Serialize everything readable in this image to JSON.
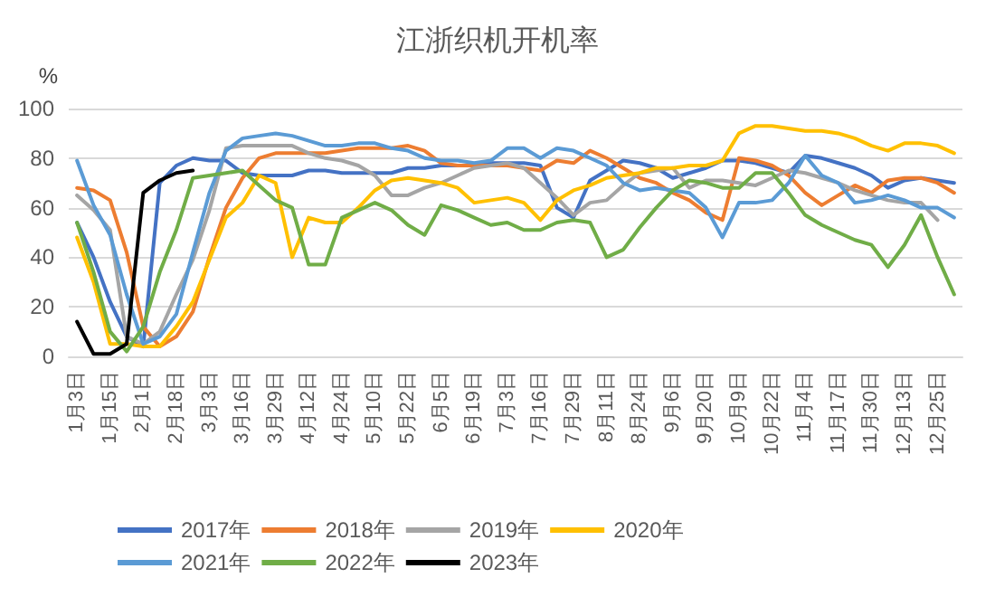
{
  "chart_data": {
    "type": "line",
    "title": "江浙织机开机率",
    "ylabel": "%",
    "categories": [
      "1月3日",
      null,
      "1月15日",
      null,
      "2月1日",
      null,
      "2月18日",
      null,
      "3月3日",
      null,
      "3月16日",
      null,
      "3月29日",
      null,
      "4月12日",
      null,
      "4月24日",
      null,
      "5月10日",
      null,
      "5月22日",
      null,
      "6月5日",
      null,
      "6月19日",
      null,
      "7月3日",
      null,
      "7月16日",
      null,
      "7月29日",
      null,
      "8月11日",
      null,
      "8月24日",
      null,
      "9月6日",
      null,
      "9月20日",
      null,
      "10月9日",
      null,
      "10月22日",
      null,
      "11月4日",
      null,
      "11月17日",
      null,
      "11月30日",
      null,
      "12月13日",
      null,
      "12月25日",
      null
    ],
    "series": [
      {
        "name": "2017年",
        "color": "#4472c4",
        "values": [
          54,
          40,
          22,
          8,
          4,
          70,
          77,
          80,
          79,
          79,
          74,
          73,
          73,
          73,
          75,
          75,
          74,
          74,
          74,
          74,
          76,
          76,
          77,
          77,
          77,
          78,
          78,
          78,
          77,
          60,
          56,
          71,
          75,
          79,
          78,
          76,
          72,
          74,
          76,
          79,
          79,
          78,
          76,
          74,
          81,
          80,
          78,
          76,
          73,
          68,
          71,
          72,
          71,
          70
        ]
      },
      {
        "name": "2018年",
        "color": "#ed7d31",
        "values": [
          68,
          67,
          63,
          42,
          12,
          4,
          8,
          18,
          40,
          60,
          72,
          80,
          82,
          82,
          82,
          82,
          83,
          84,
          84,
          84,
          85,
          83,
          78,
          77,
          77,
          77,
          77,
          76,
          75,
          79,
          78,
          83,
          80,
          76,
          72,
          70,
          66,
          63,
          58,
          55,
          80,
          79,
          77,
          73,
          66,
          61,
          65,
          69,
          66,
          71,
          72,
          72,
          70,
          66
        ]
      },
      {
        "name": "2019年",
        "color": "#a5a5a5",
        "values": [
          65,
          59,
          51,
          8,
          5,
          10,
          25,
          39,
          59,
          84,
          85,
          85,
          85,
          85,
          82,
          80,
          79,
          77,
          73,
          65,
          65,
          68,
          70,
          73,
          76,
          77,
          78,
          76,
          70,
          64,
          57,
          62,
          63,
          69,
          74,
          75,
          76,
          68,
          71,
          71,
          70,
          69,
          72,
          75,
          74,
          72,
          70,
          67,
          65,
          63,
          62,
          62,
          55,
          null
        ]
      },
      {
        "name": "2020年",
        "color": "#ffc000",
        "values": [
          48,
          30,
          5,
          5,
          4,
          4,
          12,
          22,
          39,
          56,
          62,
          73,
          70,
          40,
          56,
          54,
          54,
          60,
          67,
          71,
          72,
          71,
          70,
          68,
          62,
          63,
          64,
          62,
          55,
          63,
          67,
          69,
          72,
          73,
          74,
          76,
          76,
          77,
          77,
          79,
          90,
          93,
          93,
          92,
          91,
          91,
          90,
          88,
          85,
          83,
          86,
          86,
          85,
          82
        ]
      },
      {
        "name": "2021年",
        "color": "#5b9bd5",
        "values": [
          79,
          61,
          49,
          25,
          5,
          8,
          17,
          42,
          66,
          83,
          88,
          89,
          90,
          89,
          87,
          85,
          85,
          86,
          86,
          84,
          83,
          80,
          79,
          79,
          78,
          79,
          84,
          84,
          80,
          84,
          83,
          80,
          77,
          70,
          67,
          68,
          67,
          66,
          60,
          48,
          62,
          62,
          63,
          70,
          81,
          73,
          70,
          62,
          63,
          65,
          63,
          60,
          60,
          56
        ]
      },
      {
        "name": "2022年",
        "color": "#70ad47",
        "values": [
          54,
          34,
          10,
          2,
          12,
          34,
          51,
          72,
          73,
          74,
          75,
          69,
          63,
          60,
          37,
          37,
          56,
          59,
          62,
          59,
          53,
          49,
          61,
          59,
          56,
          53,
          54,
          51,
          51,
          54,
          55,
          54,
          40,
          43,
          52,
          60,
          67,
          71,
          70,
          68,
          68,
          74,
          74,
          66,
          57,
          53,
          50,
          47,
          45,
          36,
          45,
          57,
          40,
          25
        ]
      },
      {
        "name": "2023年",
        "color": "#000000",
        "values": [
          14,
          1,
          1,
          5,
          66,
          71,
          74,
          75,
          null,
          null,
          null,
          null,
          null,
          null,
          null,
          null,
          null,
          null,
          null,
          null,
          null,
          null,
          null,
          null,
          null,
          null,
          null,
          null,
          null,
          null,
          null,
          null,
          null,
          null,
          null,
          null,
          null,
          null,
          null,
          null,
          null,
          null,
          null,
          null,
          null,
          null,
          null,
          null,
          null,
          null,
          null,
          null,
          null,
          null
        ]
      }
    ],
    "ylim": [
      0,
      100
    ],
    "yticks": [
      0,
      20,
      40,
      60,
      80,
      100
    ],
    "grid": "y",
    "legend": "bottom",
    "marker": "none",
    "line_style": "solid"
  }
}
